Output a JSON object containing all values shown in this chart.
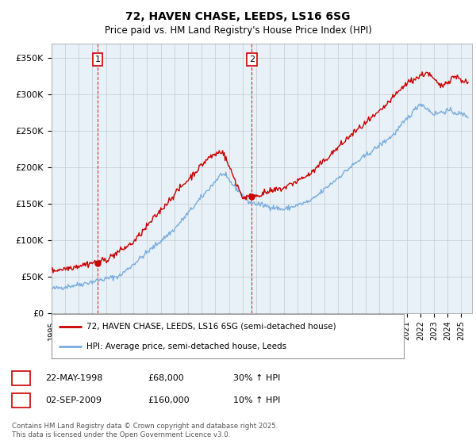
{
  "title": "72, HAVEN CHASE, LEEDS, LS16 6SG",
  "subtitle": "Price paid vs. HM Land Registry's House Price Index (HPI)",
  "ylabel_ticks": [
    "£0",
    "£50K",
    "£100K",
    "£150K",
    "£200K",
    "£250K",
    "£300K",
    "£350K"
  ],
  "ytick_values": [
    0,
    50000,
    100000,
    150000,
    200000,
    250000,
    300000,
    350000
  ],
  "ylim": [
    0,
    370000
  ],
  "xlim_start": 1995.0,
  "xlim_end": 2025.8,
  "red_color": "#cc0000",
  "blue_color": "#7aaddc",
  "chart_bg": "#e8f0f8",
  "marker1_x": 1998.38,
  "marker1_y": 68000,
  "marker2_x": 2009.67,
  "marker2_y": 160000,
  "legend_red_label": "72, HAVEN CHASE, LEEDS, LS16 6SG (semi-detached house)",
  "legend_blue_label": "HPI: Average price, semi-detached house, Leeds",
  "table_row1": [
    "1",
    "22-MAY-1998",
    "£68,000",
    "30% ↑ HPI"
  ],
  "table_row2": [
    "2",
    "02-SEP-2009",
    "£160,000",
    "10% ↑ HPI"
  ],
  "footnote": "Contains HM Land Registry data © Crown copyright and database right 2025.\nThis data is licensed under the Open Government Licence v3.0.",
  "grid_color": "#c0c8d0",
  "vline_color": "#cc0000",
  "background_color": "#ffffff"
}
